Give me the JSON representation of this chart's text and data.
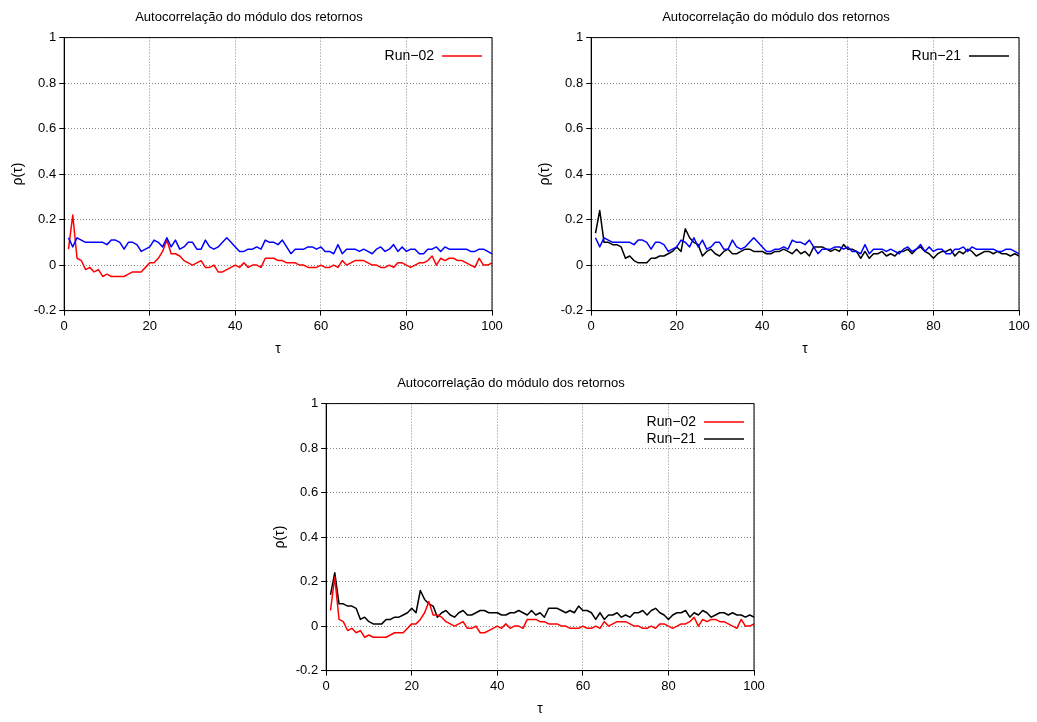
{
  "chart_data": [
    {
      "type": "line",
      "title": "Autocorrelação do módulo dos retornos",
      "xlabel": "τ",
      "ylabel": "ρ(τ)",
      "x": [
        1,
        2,
        3,
        4,
        5,
        6,
        7,
        8,
        9,
        10,
        11,
        12,
        13,
        14,
        15,
        16,
        17,
        18,
        19,
        20,
        21,
        22,
        23,
        24,
        25,
        26,
        27,
        28,
        29,
        30,
        31,
        32,
        33,
        34,
        35,
        36,
        37,
        38,
        39,
        40,
        41,
        42,
        43,
        44,
        45,
        46,
        47,
        48,
        49,
        50,
        51,
        52,
        53,
        54,
        55,
        56,
        57,
        58,
        59,
        60,
        61,
        62,
        63,
        64,
        65,
        66,
        67,
        68,
        69,
        70,
        71,
        72,
        73,
        74,
        75,
        76,
        77,
        78,
        79,
        80,
        81,
        82,
        83,
        84,
        85,
        86,
        87,
        88,
        89,
        90,
        91,
        92,
        93,
        94,
        95,
        96,
        97,
        98,
        99,
        100
      ],
      "series": [
        {
          "color": "#0000ff",
          "values": [
            0.12,
            0.08,
            0.12,
            0.11,
            0.1,
            0.1,
            0.1,
            0.1,
            0.1,
            0.09,
            0.11,
            0.11,
            0.1,
            0.07,
            0.1,
            0.1,
            0.09,
            0.06,
            0.07,
            0.08,
            0.11,
            0.1,
            0.08,
            0.12,
            0.08,
            0.11,
            0.07,
            0.08,
            0.1,
            0.1,
            0.07,
            0.07,
            0.11,
            0.08,
            0.07,
            0.08,
            0.1,
            0.12,
            0.1,
            0.08,
            0.06,
            0.06,
            0.07,
            0.07,
            0.08,
            0.07,
            0.11,
            0.1,
            0.1,
            0.09,
            0.11,
            0.08,
            0.05,
            0.07,
            0.07,
            0.07,
            0.08,
            0.08,
            0.07,
            0.08,
            0.06,
            0.06,
            0.05,
            0.09,
            0.05,
            0.07,
            0.07,
            0.07,
            0.06,
            0.07,
            0.06,
            0.05,
            0.07,
            0.08,
            0.06,
            0.07,
            0.09,
            0.06,
            0.08,
            0.06,
            0.07,
            0.07,
            0.05,
            0.05,
            0.07,
            0.07,
            0.08,
            0.06,
            0.08,
            0.07,
            0.07,
            0.07,
            0.07,
            0.07,
            0.06,
            0.06,
            0.07,
            0.07,
            0.06,
            0.05
          ]
        },
        {
          "name": "Run−02",
          "color": "#ff0000",
          "values": [
            0.07,
            0.22,
            0.03,
            0.02,
            -0.02,
            -0.01,
            -0.03,
            -0.02,
            -0.05,
            -0.04,
            -0.05,
            -0.05,
            -0.05,
            -0.05,
            -0.04,
            -0.03,
            -0.03,
            -0.03,
            -0.01,
            0.01,
            0.01,
            0.03,
            0.06,
            0.11,
            0.05,
            0.05,
            0.04,
            0.02,
            0.01,
            0.0,
            0.01,
            0.02,
            -0.01,
            -0.01,
            0.0,
            -0.03,
            -0.03,
            -0.02,
            -0.01,
            0.0,
            -0.01,
            0.01,
            -0.01,
            0.0,
            0.0,
            -0.01,
            0.03,
            0.03,
            0.03,
            0.02,
            0.02,
            0.01,
            0.01,
            0.01,
            0.0,
            0.0,
            -0.01,
            -0.01,
            -0.01,
            0.0,
            -0.01,
            -0.01,
            0.0,
            -0.01,
            0.02,
            0.0,
            0.01,
            0.02,
            0.02,
            0.02,
            0.01,
            0.0,
            0.0,
            -0.01,
            -0.01,
            0.0,
            -0.01,
            0.01,
            0.01,
            0.0,
            -0.01,
            0.0,
            0.01,
            0.01,
            0.02,
            0.04,
            0.0,
            0.03,
            0.02,
            0.03,
            0.03,
            0.02,
            0.02,
            0.01,
            0.0,
            -0.01,
            0.03,
            0.0,
            0.0,
            0.01
          ]
        }
      ],
      "xlim": [
        0,
        100
      ],
      "xticks": [
        0,
        20,
        40,
        60,
        80,
        100
      ],
      "ylim": [
        -0.2,
        1
      ],
      "yticks": [
        -0.2,
        0,
        0.2,
        0.4,
        0.6,
        0.8,
        1
      ],
      "grid": true,
      "legend": "top right",
      "marker": "none",
      "line_style": "solid"
    },
    {
      "type": "line",
      "title": "Autocorrelação do módulo dos retornos",
      "xlabel": "τ",
      "ylabel": "ρ(τ)",
      "x": [
        1,
        2,
        3,
        4,
        5,
        6,
        7,
        8,
        9,
        10,
        11,
        12,
        13,
        14,
        15,
        16,
        17,
        18,
        19,
        20,
        21,
        22,
        23,
        24,
        25,
        26,
        27,
        28,
        29,
        30,
        31,
        32,
        33,
        34,
        35,
        36,
        37,
        38,
        39,
        40,
        41,
        42,
        43,
        44,
        45,
        46,
        47,
        48,
        49,
        50,
        51,
        52,
        53,
        54,
        55,
        56,
        57,
        58,
        59,
        60,
        61,
        62,
        63,
        64,
        65,
        66,
        67,
        68,
        69,
        70,
        71,
        72,
        73,
        74,
        75,
        76,
        77,
        78,
        79,
        80,
        81,
        82,
        83,
        84,
        85,
        86,
        87,
        88,
        89,
        90,
        91,
        92,
        93,
        94,
        95,
        96,
        97,
        98,
        99,
        100
      ],
      "series": [
        {
          "color": "#0000ff",
          "values": [
            0.12,
            0.08,
            0.12,
            0.11,
            0.1,
            0.1,
            0.1,
            0.1,
            0.1,
            0.09,
            0.11,
            0.11,
            0.1,
            0.07,
            0.1,
            0.1,
            0.09,
            0.06,
            0.07,
            0.08,
            0.11,
            0.1,
            0.08,
            0.12,
            0.08,
            0.11,
            0.07,
            0.08,
            0.1,
            0.1,
            0.07,
            0.07,
            0.11,
            0.08,
            0.07,
            0.08,
            0.1,
            0.12,
            0.1,
            0.08,
            0.06,
            0.06,
            0.07,
            0.07,
            0.08,
            0.07,
            0.11,
            0.1,
            0.1,
            0.09,
            0.11,
            0.08,
            0.05,
            0.07,
            0.07,
            0.07,
            0.08,
            0.08,
            0.07,
            0.08,
            0.06,
            0.06,
            0.05,
            0.09,
            0.05,
            0.07,
            0.07,
            0.07,
            0.06,
            0.07,
            0.06,
            0.05,
            0.07,
            0.08,
            0.06,
            0.07,
            0.09,
            0.06,
            0.08,
            0.06,
            0.07,
            0.07,
            0.05,
            0.05,
            0.07,
            0.07,
            0.08,
            0.06,
            0.08,
            0.07,
            0.07,
            0.07,
            0.07,
            0.07,
            0.06,
            0.06,
            0.07,
            0.07,
            0.06,
            0.05
          ]
        },
        {
          "name": "Run−21",
          "color": "#000000",
          "values": [
            0.14,
            0.24,
            0.1,
            0.1,
            0.09,
            0.09,
            0.08,
            0.03,
            0.04,
            0.02,
            0.01,
            0.01,
            0.01,
            0.03,
            0.03,
            0.04,
            0.04,
            0.05,
            0.06,
            0.08,
            0.06,
            0.16,
            0.12,
            0.1,
            0.09,
            0.04,
            0.06,
            0.07,
            0.05,
            0.04,
            0.06,
            0.07,
            0.05,
            0.05,
            0.06,
            0.07,
            0.07,
            0.06,
            0.06,
            0.06,
            0.05,
            0.05,
            0.06,
            0.06,
            0.07,
            0.06,
            0.05,
            0.07,
            0.05,
            0.06,
            0.04,
            0.08,
            0.08,
            0.08,
            0.07,
            0.06,
            0.07,
            0.06,
            0.09,
            0.07,
            0.07,
            0.06,
            0.03,
            0.06,
            0.03,
            0.05,
            0.05,
            0.06,
            0.04,
            0.05,
            0.04,
            0.06,
            0.06,
            0.07,
            0.05,
            0.07,
            0.08,
            0.06,
            0.05,
            0.03,
            0.05,
            0.06,
            0.06,
            0.07,
            0.04,
            0.06,
            0.05,
            0.07,
            0.06,
            0.04,
            0.05,
            0.06,
            0.06,
            0.05,
            0.06,
            0.05,
            0.05,
            0.04,
            0.05,
            0.04
          ]
        }
      ],
      "xlim": [
        0,
        100
      ],
      "xticks": [
        0,
        20,
        40,
        60,
        80,
        100
      ],
      "ylim": [
        -0.2,
        1
      ],
      "yticks": [
        -0.2,
        0,
        0.2,
        0.4,
        0.6,
        0.8,
        1
      ],
      "grid": true,
      "legend": "top right",
      "marker": "none",
      "line_style": "solid"
    },
    {
      "type": "line",
      "title": "Autocorrelação do módulo dos retornos",
      "xlabel": "τ",
      "ylabel": "ρ(τ)",
      "x": [
        1,
        2,
        3,
        4,
        5,
        6,
        7,
        8,
        9,
        10,
        11,
        12,
        13,
        14,
        15,
        16,
        17,
        18,
        19,
        20,
        21,
        22,
        23,
        24,
        25,
        26,
        27,
        28,
        29,
        30,
        31,
        32,
        33,
        34,
        35,
        36,
        37,
        38,
        39,
        40,
        41,
        42,
        43,
        44,
        45,
        46,
        47,
        48,
        49,
        50,
        51,
        52,
        53,
        54,
        55,
        56,
        57,
        58,
        59,
        60,
        61,
        62,
        63,
        64,
        65,
        66,
        67,
        68,
        69,
        70,
        71,
        72,
        73,
        74,
        75,
        76,
        77,
        78,
        79,
        80,
        81,
        82,
        83,
        84,
        85,
        86,
        87,
        88,
        89,
        90,
        91,
        92,
        93,
        94,
        95,
        96,
        97,
        98,
        99,
        100
      ],
      "series": [
        {
          "name": "Run−02",
          "color": "#ff0000",
          "values": [
            0.07,
            0.22,
            0.03,
            0.02,
            -0.02,
            -0.01,
            -0.03,
            -0.02,
            -0.05,
            -0.04,
            -0.05,
            -0.05,
            -0.05,
            -0.05,
            -0.04,
            -0.03,
            -0.03,
            -0.03,
            -0.01,
            0.01,
            0.01,
            0.03,
            0.06,
            0.11,
            0.05,
            0.05,
            0.04,
            0.02,
            0.01,
            0.0,
            0.01,
            0.02,
            -0.01,
            -0.01,
            0.0,
            -0.03,
            -0.03,
            -0.02,
            -0.01,
            0.0,
            -0.01,
            0.01,
            -0.01,
            0.0,
            0.0,
            -0.01,
            0.03,
            0.03,
            0.03,
            0.02,
            0.02,
            0.01,
            0.01,
            0.01,
            0.0,
            0.0,
            -0.01,
            -0.01,
            -0.01,
            0.0,
            -0.01,
            -0.01,
            0.0,
            -0.01,
            0.02,
            0.0,
            0.01,
            0.02,
            0.02,
            0.02,
            0.01,
            0.0,
            0.0,
            -0.01,
            -0.01,
            0.0,
            -0.01,
            0.01,
            0.01,
            0.0,
            -0.01,
            0.0,
            0.01,
            0.01,
            0.02,
            0.04,
            0.0,
            0.03,
            0.02,
            0.03,
            0.03,
            0.02,
            0.02,
            0.01,
            0.0,
            -0.01,
            0.03,
            0.0,
            0.0,
            0.01
          ]
        },
        {
          "name": "Run−21",
          "color": "#000000",
          "values": [
            0.14,
            0.24,
            0.1,
            0.1,
            0.09,
            0.09,
            0.08,
            0.03,
            0.04,
            0.02,
            0.01,
            0.01,
            0.01,
            0.03,
            0.03,
            0.04,
            0.04,
            0.05,
            0.06,
            0.08,
            0.06,
            0.16,
            0.12,
            0.1,
            0.09,
            0.04,
            0.06,
            0.07,
            0.05,
            0.04,
            0.06,
            0.07,
            0.05,
            0.05,
            0.06,
            0.07,
            0.07,
            0.06,
            0.06,
            0.06,
            0.05,
            0.05,
            0.06,
            0.06,
            0.07,
            0.06,
            0.05,
            0.07,
            0.05,
            0.06,
            0.04,
            0.08,
            0.08,
            0.08,
            0.07,
            0.06,
            0.07,
            0.06,
            0.09,
            0.07,
            0.07,
            0.06,
            0.03,
            0.06,
            0.03,
            0.05,
            0.05,
            0.06,
            0.04,
            0.05,
            0.04,
            0.06,
            0.06,
            0.07,
            0.05,
            0.07,
            0.08,
            0.06,
            0.05,
            0.03,
            0.05,
            0.06,
            0.06,
            0.07,
            0.04,
            0.06,
            0.05,
            0.07,
            0.06,
            0.04,
            0.05,
            0.06,
            0.06,
            0.05,
            0.06,
            0.05,
            0.05,
            0.04,
            0.05,
            0.04
          ]
        }
      ],
      "xlim": [
        0,
        100
      ],
      "xticks": [
        0,
        20,
        40,
        60,
        80,
        100
      ],
      "ylim": [
        -0.2,
        1
      ],
      "yticks": [
        -0.2,
        0,
        0.2,
        0.4,
        0.6,
        0.8,
        1
      ],
      "grid": true,
      "legend": "top right",
      "marker": "none",
      "line_style": "solid"
    }
  ]
}
